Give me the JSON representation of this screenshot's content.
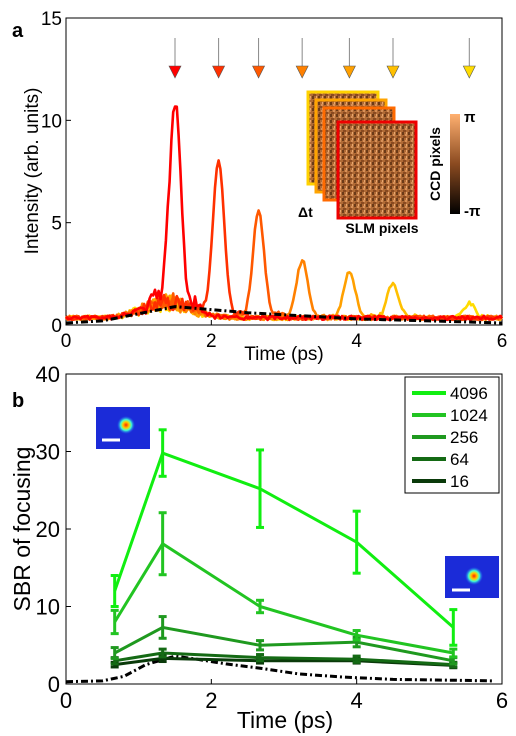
{
  "panels": {
    "a_label": "a",
    "b_label": "b"
  },
  "chart_data": [
    {
      "type": "line",
      "panel": "a",
      "xlabel": "Time (ps)",
      "ylabel": "Intensity (arb. units)",
      "xlim": [
        0,
        6
      ],
      "ylim": [
        0,
        15
      ],
      "x_ticks": [
        "0",
        "2",
        "4",
        "6"
      ],
      "y_ticks": [
        "0",
        "5",
        "10",
        "15"
      ],
      "grid": false,
      "peaks": [
        {
          "t": 1.5,
          "peak": 10.0,
          "color": "#ff0000"
        },
        {
          "t": 2.1,
          "peak": 7.6,
          "color": "#ff3000"
        },
        {
          "t": 2.65,
          "peak": 5.2,
          "color": "#ff5800"
        },
        {
          "t": 3.25,
          "peak": 2.8,
          "color": "#ff8000"
        },
        {
          "t": 3.9,
          "peak": 2.3,
          "color": "#ffa000"
        },
        {
          "t": 4.5,
          "peak": 1.7,
          "color": "#ffc000"
        },
        {
          "t": 5.55,
          "peak": 0.7,
          "color": "#ffdc00"
        }
      ],
      "arrow_times": [
        1.5,
        2.1,
        2.65,
        3.25,
        3.9,
        4.5,
        5.55
      ],
      "reference_curve": {
        "style": "dash-dot black",
        "x": [
          0,
          0.5,
          1.0,
          1.5,
          2.0,
          2.5,
          3.0,
          3.5,
          4.0,
          4.5,
          5.0,
          5.5,
          6.0
        ],
        "y": [
          0.1,
          0.2,
          0.55,
          0.9,
          0.75,
          0.6,
          0.5,
          0.4,
          0.3,
          0.25,
          0.2,
          0.15,
          0.1
        ]
      },
      "inset": {
        "label_t": "Δt",
        "label_slm": "SLM pixels",
        "label_ccd": "CCD pixels",
        "colorbar_max": "π",
        "colorbar_min": "-π"
      }
    },
    {
      "type": "line",
      "panel": "b",
      "xlabel": "Time (ps)",
      "ylabel": "SBR of focusing",
      "xlim": [
        0,
        6
      ],
      "ylim": [
        0,
        40
      ],
      "x_ticks": [
        "0",
        "2",
        "4",
        "6"
      ],
      "y_ticks": [
        "0",
        "10",
        "20",
        "30",
        "40"
      ],
      "grid": false,
      "legend_position": "top-right",
      "x": [
        0.67,
        1.33,
        2.67,
        4.0,
        5.33
      ],
      "series": [
        {
          "name": "4096",
          "color": "#11ee11",
          "values": [
            12.0,
            29.8,
            25.2,
            18.3,
            7.3
          ],
          "errors": [
            2.0,
            3.0,
            5.0,
            4.0,
            2.3
          ]
        },
        {
          "name": "1024",
          "color": "#22c422",
          "values": [
            8.0,
            18.1,
            10.0,
            6.3,
            4.0
          ],
          "errors": [
            1.5,
            4.0,
            0.8,
            0.6,
            0.5
          ]
        },
        {
          "name": "256",
          "color": "#1f991f",
          "values": [
            4.0,
            7.3,
            5.0,
            5.4,
            3.0
          ],
          "errors": [
            0.7,
            1.4,
            0.6,
            0.6,
            0.4
          ]
        },
        {
          "name": "64",
          "color": "#146a14",
          "values": [
            3.0,
            4.0,
            3.4,
            3.2,
            2.5
          ],
          "errors": [
            0.4,
            0.5,
            0.4,
            0.4,
            0.3
          ]
        },
        {
          "name": "16",
          "color": "#0a3a0a",
          "values": [
            2.5,
            3.3,
            3.0,
            3.0,
            2.4
          ],
          "errors": [
            0.3,
            0.4,
            0.3,
            0.3,
            0.3
          ]
        }
      ],
      "reference_curve": {
        "style": "dash-dot black",
        "x": [
          0,
          0.5,
          0.8,
          1.1,
          1.5,
          1.8,
          2.2,
          2.7,
          3.2,
          3.8,
          4.5,
          5.2,
          5.9
        ],
        "y": [
          0.3,
          0.4,
          1.0,
          2.5,
          3.6,
          3.2,
          2.6,
          2.0,
          1.3,
          0.9,
          0.6,
          0.5,
          0.4
        ]
      }
    }
  ]
}
